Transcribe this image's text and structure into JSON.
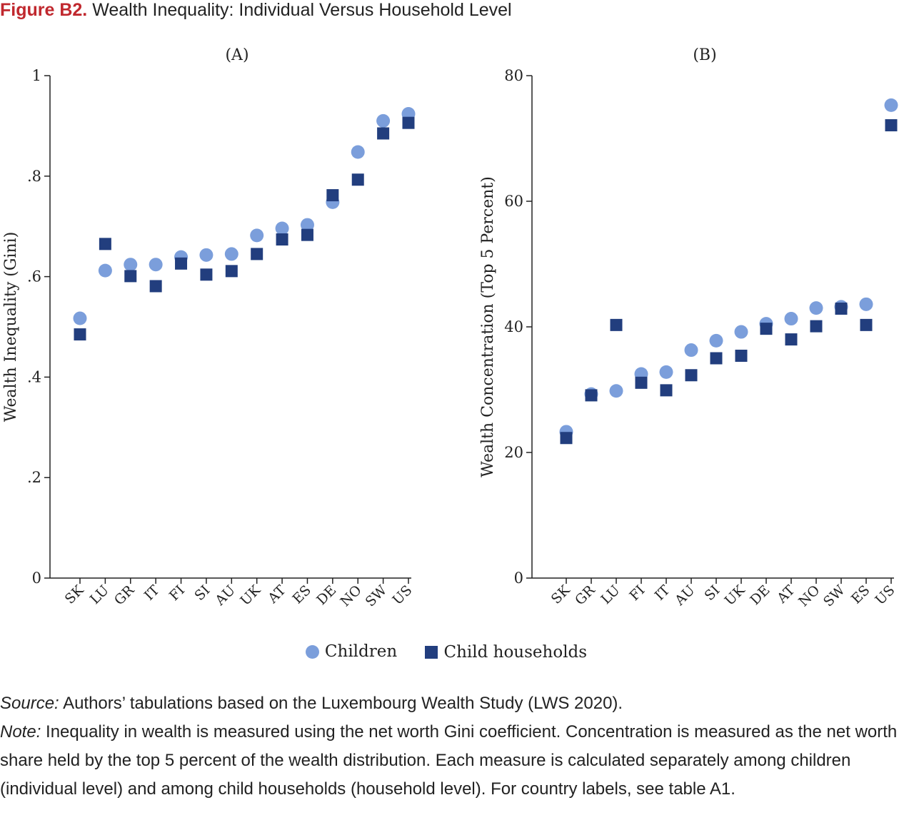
{
  "figure": {
    "label": "Figure B2.",
    "title": "Wealth Inequality: Individual Versus Household Level"
  },
  "legend": {
    "children": "Children",
    "households": "Child households"
  },
  "colors": {
    "children": "#7b9edb",
    "households": "#223e7e",
    "axis": "#222222",
    "title_label": "#c0282e"
  },
  "notes": {
    "source_label": "Source:",
    "source_text": " Authors’ tabulations based on the Luxembourg Wealth Study (LWS 2020).",
    "note_label": "Note:",
    "note_text": " Inequality in wealth is measured using the net worth Gini coefficient. Concentration is measured as the net worth share held by the top 5 percent of the wealth distribution. Each measure is calculated separately among children (individual level) and among child households (household level). For country labels, see table A1."
  },
  "chart_data": [
    {
      "type": "scatter",
      "panel_label": "(A)",
      "ylabel": "Wealth Inequality (Gini)",
      "ylim": [
        0,
        1
      ],
      "yticks": [
        0,
        0.2,
        0.4,
        0.6,
        0.8,
        1
      ],
      "ytick_labels": [
        "0",
        ".2",
        ".4",
        ".6",
        ".8",
        "1"
      ],
      "categories": [
        "SK",
        "LU",
        "GR",
        "IT",
        "FI",
        "SI",
        "AU",
        "UK",
        "AT",
        "ES",
        "DE",
        "NO",
        "SW",
        "US"
      ],
      "series": [
        {
          "name": "Children",
          "marker": "circle",
          "values": [
            0.517,
            0.612,
            0.624,
            0.624,
            0.639,
            0.643,
            0.645,
            0.682,
            0.696,
            0.703,
            0.748,
            0.848,
            0.91,
            0.924
          ]
        },
        {
          "name": "Child households",
          "marker": "square",
          "values": [
            0.485,
            0.665,
            0.601,
            0.581,
            0.626,
            0.604,
            0.611,
            0.645,
            0.674,
            0.683,
            0.762,
            0.793,
            0.885,
            0.906
          ]
        }
      ],
      "grid": false
    },
    {
      "type": "scatter",
      "panel_label": "(B)",
      "ylabel": "Wealth Concentration (Top 5 Percent)",
      "ylim": [
        0,
        80
      ],
      "yticks": [
        0,
        20,
        40,
        60,
        80
      ],
      "ytick_labels": [
        "0",
        "20",
        "40",
        "60",
        "80"
      ],
      "categories": [
        "SK",
        "GR",
        "LU",
        "FI",
        "IT",
        "AU",
        "SI",
        "UK",
        "DE",
        "AT",
        "NO",
        "SW",
        "ES",
        "US"
      ],
      "series": [
        {
          "name": "Children",
          "marker": "circle",
          "values": [
            23.3,
            29.3,
            29.8,
            32.5,
            32.8,
            36.3,
            37.8,
            39.2,
            40.5,
            41.3,
            43.0,
            43.2,
            43.6,
            75.3
          ]
        },
        {
          "name": "Child households",
          "marker": "square",
          "values": [
            22.3,
            29.1,
            40.3,
            31.1,
            29.9,
            32.3,
            35.0,
            35.4,
            39.7,
            38.0,
            40.1,
            42.9,
            40.3,
            72.1
          ]
        }
      ],
      "grid": false
    }
  ]
}
